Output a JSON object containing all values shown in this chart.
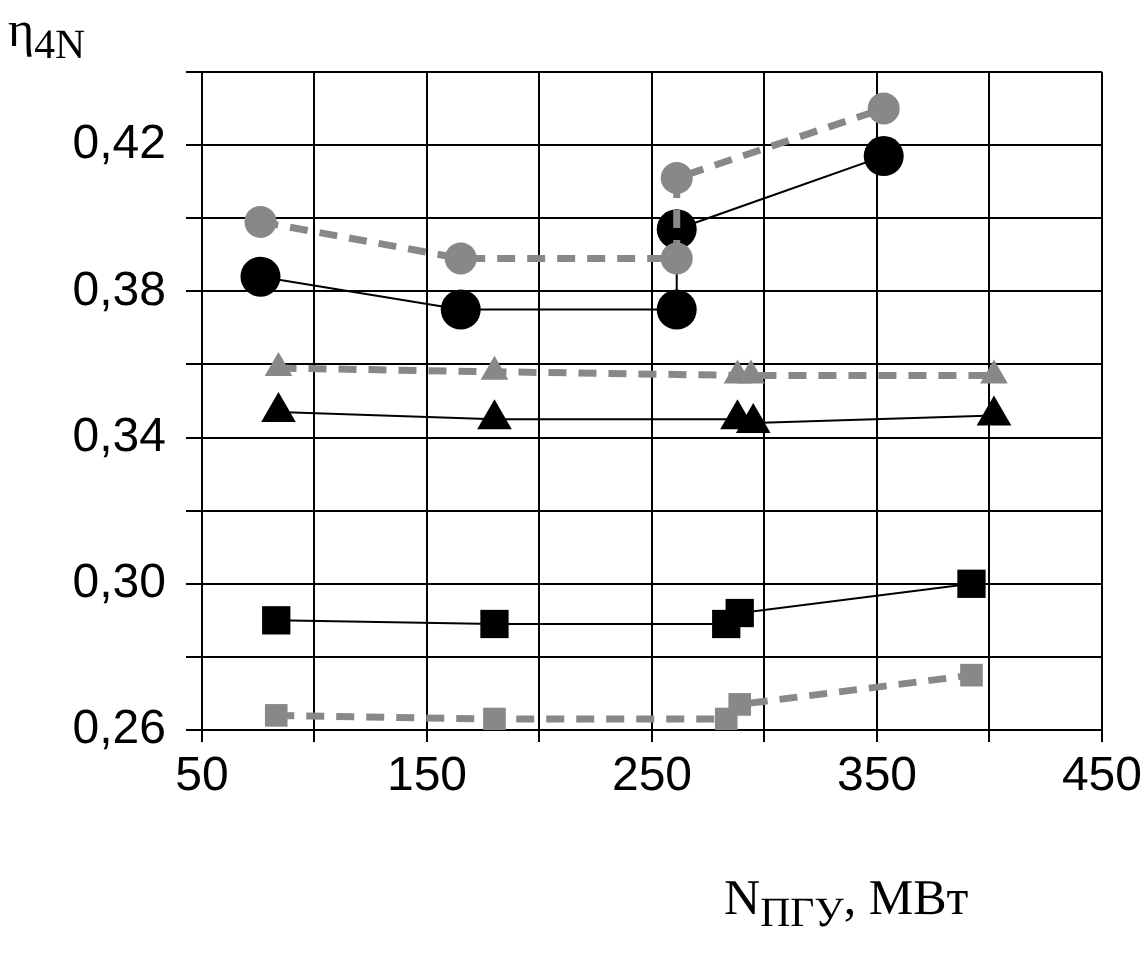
{
  "chart_data": {
    "type": "line",
    "xlabel": "N$_{ПГУ}$, МВт",
    "ylabel": "η$_{4N}$",
    "xlim": [
      50,
      450
    ],
    "xticks": [
      50,
      {
        "value": 100,
        "label": null
      },
      150,
      {
        "value": 200,
        "label": null
      },
      250,
      {
        "value": 300,
        "label": null
      },
      350,
      {
        "value": 400,
        "label": null
      },
      450
    ],
    "ylim": [
      0.26,
      0.44
    ],
    "yticks": [
      {
        "value": 0.26,
        "label": "0,26"
      },
      {
        "value": 0.28,
        "label": null
      },
      {
        "value": 0.3,
        "label": "0,30"
      },
      {
        "value": 0.32,
        "label": null
      },
      {
        "value": 0.34,
        "label": "0,34"
      },
      {
        "value": 0.36,
        "label": null
      },
      {
        "value": 0.38,
        "label": "0,38"
      },
      {
        "value": 0.4,
        "label": null
      },
      {
        "value": 0.42,
        "label": "0,42"
      },
      {
        "value": 0.44,
        "label": null
      }
    ],
    "grid": true,
    "legend": false,
    "series": [
      {
        "color": "#888888",
        "marker": "circle",
        "line_style": "dashed",
        "x": [
          76,
          165,
          261,
          261,
          353
        ],
        "values": [
          0.399,
          0.389,
          0.389,
          0.411,
          0.43
        ]
      },
      {
        "color": "#000000",
        "marker": "circle",
        "line_style": "solid",
        "x": [
          76,
          165,
          261,
          261,
          353
        ],
        "values": [
          0.384,
          0.375,
          0.375,
          0.397,
          0.417
        ]
      },
      {
        "color": "#888888",
        "marker": "triangle",
        "line_style": "dashed",
        "x": [
          84,
          180,
          288,
          294,
          402
        ],
        "values": [
          0.359,
          0.358,
          0.357,
          0.357,
          0.357
        ]
      },
      {
        "color": "#000000",
        "marker": "triangle",
        "line_style": "solid",
        "x": [
          84,
          180,
          288,
          295,
          402
        ],
        "values": [
          0.347,
          0.345,
          0.345,
          0.344,
          0.346
        ]
      },
      {
        "color": "#000000",
        "marker": "square",
        "line_style": "solid",
        "x": [
          83,
          180,
          283,
          289,
          392
        ],
        "values": [
          0.29,
          0.289,
          0.289,
          0.292,
          0.3
        ]
      },
      {
        "color": "#888888",
        "marker": "square",
        "line_style": "dashed",
        "x": [
          83,
          180,
          283,
          289,
          392
        ],
        "values": [
          0.264,
          0.263,
          0.263,
          0.267,
          0.275
        ]
      }
    ]
  }
}
